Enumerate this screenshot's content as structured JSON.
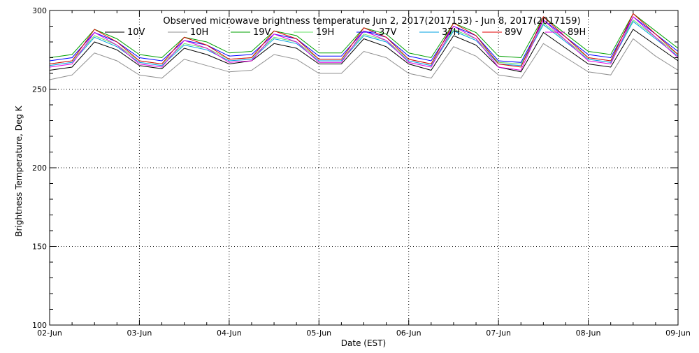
{
  "chart_data": {
    "type": "line",
    "title": "Observed microwave brightness temperature Jun  2, 2017(2017153) - Jun  8, 2017(2017159)",
    "xlabel": "Date (EST)",
    "ylabel": "Brightness Temperature, Deg K",
    "x_ticks": [
      "02-Jun",
      "03-Jun",
      "04-Jun",
      "05-Jun",
      "06-Jun",
      "07-Jun",
      "08-Jun",
      "09-Jun"
    ],
    "y_ticks": [
      100,
      150,
      200,
      250,
      300
    ],
    "xlim": [
      "2017-06-02",
      "2017-06-09"
    ],
    "ylim": [
      100,
      300
    ],
    "grid": true,
    "legend_position": "top",
    "x": [
      "2017-06-02T00:00",
      "2017-06-02T06:00",
      "2017-06-02T12:00",
      "2017-06-02T18:00",
      "2017-06-03T00:00",
      "2017-06-03T06:00",
      "2017-06-03T12:00",
      "2017-06-03T18:00",
      "2017-06-04T00:00",
      "2017-06-04T06:00",
      "2017-06-04T12:00",
      "2017-06-04T18:00",
      "2017-06-05T00:00",
      "2017-06-05T06:00",
      "2017-06-05T12:00",
      "2017-06-05T18:00",
      "2017-06-06T00:00",
      "2017-06-06T06:00",
      "2017-06-06T12:00",
      "2017-06-06T18:00",
      "2017-06-07T00:00",
      "2017-06-07T06:00",
      "2017-06-07T12:00",
      "2017-06-07T18:00",
      "2017-06-08T00:00",
      "2017-06-08T06:00",
      "2017-06-08T12:00",
      "2017-06-08T18:00",
      "2017-06-09T00:00"
    ],
    "series": [
      {
        "name": "10V",
        "color": "#000000",
        "values": [
          262,
          264,
          280,
          275,
          265,
          263,
          276,
          272,
          266,
          268,
          279,
          276,
          266,
          266,
          282,
          277,
          266,
          262,
          284,
          278,
          264,
          261,
          286,
          276,
          266,
          264,
          288,
          278,
          268
        ]
      },
      {
        "name": "10H",
        "color": "#909090",
        "values": [
          256,
          259,
          273,
          268,
          259,
          257,
          269,
          265,
          261,
          262,
          272,
          269,
          260,
          260,
          274,
          270,
          260,
          257,
          277,
          271,
          259,
          257,
          279,
          270,
          261,
          259,
          282,
          271,
          262
        ]
      },
      {
        "name": "19V",
        "color": "#00a000",
        "values": [
          270,
          272,
          288,
          282,
          272,
          270,
          283,
          280,
          273,
          274,
          287,
          284,
          273,
          273,
          289,
          285,
          273,
          270,
          292,
          286,
          271,
          270,
          296,
          285,
          274,
          272,
          298,
          287,
          276
        ]
      },
      {
        "name": "19H",
        "color": "#66e066",
        "values": [
          266,
          268,
          284,
          278,
          268,
          266,
          279,
          276,
          269,
          270,
          283,
          280,
          269,
          269,
          285,
          281,
          269,
          266,
          288,
          282,
          267,
          266,
          292,
          281,
          270,
          268,
          294,
          283,
          272
        ]
      },
      {
        "name": "37V",
        "color": "#0000ff",
        "values": [
          268,
          270,
          286,
          280,
          270,
          268,
          281,
          278,
          271,
          272,
          285,
          282,
          271,
          271,
          287,
          283,
          271,
          268,
          290,
          284,
          268,
          267,
          294,
          283,
          272,
          270,
          296,
          285,
          274
        ]
      },
      {
        "name": "37H",
        "color": "#00a0e0",
        "values": [
          265,
          267,
          283,
          277,
          267,
          265,
          278,
          275,
          268,
          269,
          282,
          279,
          268,
          268,
          284,
          280,
          268,
          265,
          287,
          281,
          266,
          265,
          291,
          280,
          269,
          267,
          293,
          282,
          271
        ]
      },
      {
        "name": "89V",
        "color": "#e00000",
        "values": [
          266,
          268,
          288,
          280,
          268,
          266,
          283,
          278,
          269,
          270,
          287,
          282,
          269,
          269,
          289,
          283,
          269,
          266,
          292,
          284,
          266,
          264,
          296,
          283,
          270,
          268,
          298,
          285,
          272
        ]
      },
      {
        "name": "89H",
        "color": "#e000e0",
        "values": [
          264,
          266,
          286,
          278,
          266,
          264,
          281,
          276,
          267,
          268,
          285,
          280,
          267,
          267,
          287,
          281,
          267,
          264,
          290,
          282,
          264,
          262,
          294,
          281,
          268,
          266,
          296,
          283,
          270
        ]
      }
    ]
  }
}
